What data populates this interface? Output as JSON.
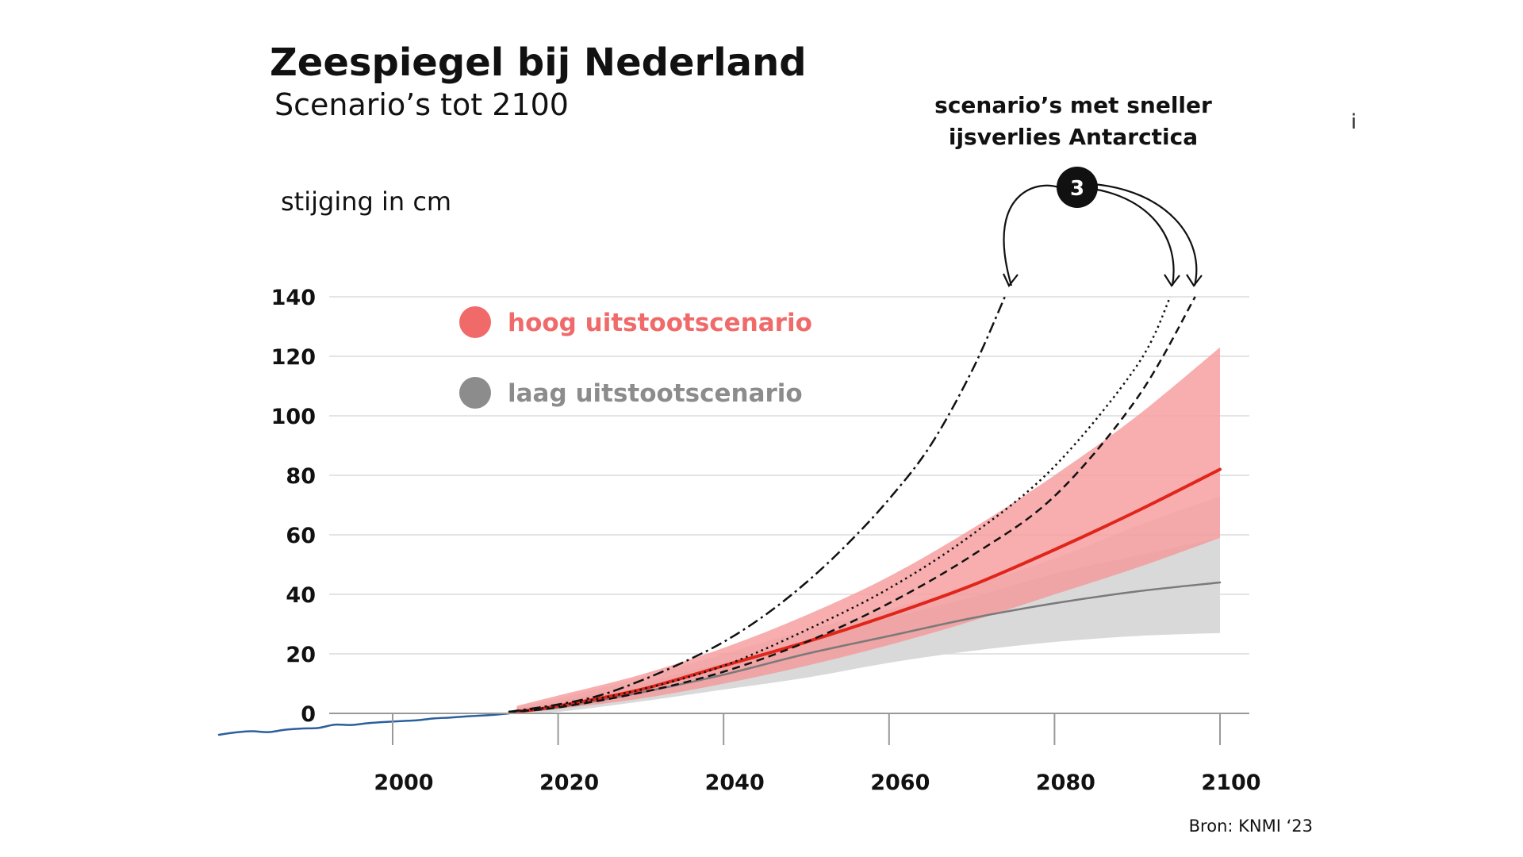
{
  "chart_data": {
    "type": "line",
    "title": "Zeespiegel bij Nederland",
    "subtitle": "Scenario’s tot 2100",
    "ylabel": "stijging in cm",
    "source": "Bron: KNMI ‘23",
    "info_glyph": "i",
    "xlim": [
      1979,
      2104
    ],
    "ylim": [
      -8,
      142
    ],
    "x_ticks": [
      2000,
      2020,
      2040,
      2060,
      2080,
      2100
    ],
    "y_ticks": [
      0,
      20,
      40,
      60,
      80,
      100,
      120,
      140
    ],
    "grid": "horizontal",
    "legend": [
      {
        "label": "hoog uitstootscenario",
        "color": "#f06a6a"
      },
      {
        "label": "laag uitstootscenario",
        "color": "#8c8c8c"
      }
    ],
    "annotation": {
      "text_line1": "scenario’s met sneller",
      "text_line2": "ijsverlies Antarctica",
      "badge": "3"
    },
    "series": [
      {
        "kind": "observed",
        "color": "#2b5f9e",
        "x": [
          1979,
          1981,
          1983,
          1985,
          1987,
          1989,
          1991,
          1993,
          1995,
          1997,
          1999,
          2001,
          2003,
          2005,
          2007,
          2009,
          2011,
          2013,
          2015
        ],
        "y": [
          -7.2,
          -6.4,
          -6.0,
          -6.3,
          -5.5,
          -5.1,
          -4.9,
          -3.8,
          -3.9,
          -3.3,
          -2.9,
          -2.6,
          -2.3,
          -1.7,
          -1.4,
          -1.0,
          -0.7,
          -0.3,
          0.3
        ]
      },
      {
        "kind": "band",
        "color": "#d9d9d9",
        "x": [
          2015,
          2020,
          2030,
          2040,
          2050,
          2060,
          2070,
          2080,
          2090,
          2100
        ],
        "y_low": [
          0,
          0.5,
          4,
          8,
          12,
          17,
          21,
          24,
          26,
          27
        ],
        "y_high": [
          1.5,
          4,
          10,
          17,
          24,
          32,
          39,
          47,
          53,
          59
        ]
      },
      {
        "kind": "band",
        "color": "#888888",
        "opacity": 0.28,
        "x": [
          2015,
          2020,
          2030,
          2040,
          2050,
          2060,
          2070,
          2080,
          2090,
          2100
        ],
        "y_low": [
          0,
          1.5,
          5,
          10,
          16,
          23,
          31,
          40,
          49,
          59
        ],
        "y_high": [
          2,
          5,
          12,
          20,
          28,
          35,
          43,
          52,
          63,
          73
        ]
      },
      {
        "kind": "band",
        "color": "#f7a0a0",
        "opacity": 0.85,
        "x": [
          2015,
          2020,
          2030,
          2040,
          2050,
          2060,
          2070,
          2080,
          2090,
          2100
        ],
        "y_low": [
          0,
          1.5,
          5,
          10,
          16,
          23,
          31,
          40,
          49,
          59
        ],
        "y_high": [
          2.5,
          6,
          13,
          22,
          33,
          46,
          62,
          80,
          100,
          123
        ]
      },
      {
        "name": "laag uitstootscenario",
        "kind": "median",
        "color": "#7a7a7a",
        "x": [
          2015,
          2020,
          2030,
          2040,
          2050,
          2060,
          2070,
          2080,
          2090,
          2100
        ],
        "y": [
          0.5,
          2,
          7,
          13,
          20,
          26,
          32,
          37,
          41,
          44
        ]
      },
      {
        "name": "hoog uitstootscenario",
        "kind": "median",
        "color": "#e0251b",
        "x": [
          2015,
          2020,
          2030,
          2040,
          2050,
          2060,
          2070,
          2080,
          2090,
          2100
        ],
        "y": [
          0.5,
          2.5,
          8,
          16,
          24,
          33,
          43,
          55,
          68,
          82
        ]
      },
      {
        "kind": "antarctica",
        "dash": "dashdot",
        "color": "#111111",
        "x": [
          2014,
          2020,
          2025,
          2030,
          2035,
          2040,
          2045,
          2050,
          2055,
          2060,
          2065,
          2070,
          2074
        ],
        "y": [
          0.5,
          3,
          6,
          11,
          17,
          24,
          33,
          44,
          57,
          72,
          90,
          115,
          140
        ]
      },
      {
        "kind": "antarctica",
        "dash": "dotted",
        "color": "#111111",
        "x": [
          2014,
          2020,
          2030,
          2040,
          2050,
          2060,
          2070,
          2080,
          2090,
          2094
        ],
        "y": [
          0.5,
          2.5,
          8,
          16,
          28,
          42,
          60,
          83,
          117,
          140
        ]
      },
      {
        "kind": "antarctica",
        "dash": "dashed",
        "color": "#111111",
        "x": [
          2014,
          2020,
          2030,
          2040,
          2050,
          2060,
          2070,
          2080,
          2090,
          2097
        ],
        "y": [
          0.5,
          2,
          7,
          14,
          24,
          37,
          53,
          73,
          106,
          140
        ]
      }
    ]
  }
}
